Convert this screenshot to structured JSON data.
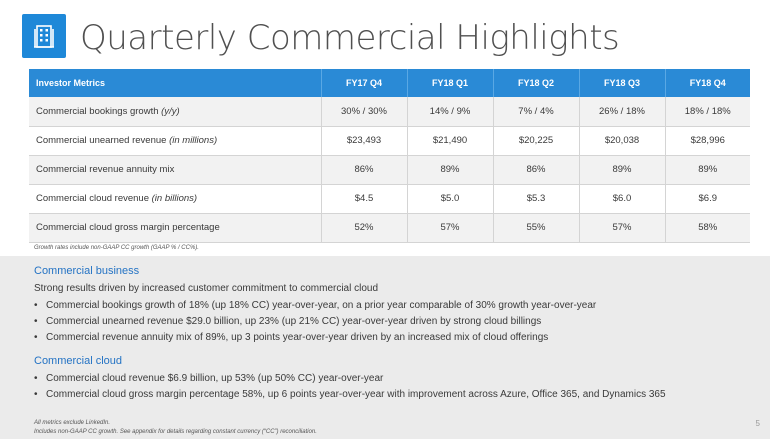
{
  "header": {
    "title": "Quarterly Commercial Highlights",
    "icon": "building-icon",
    "accent_color": "#1e88d8"
  },
  "table": {
    "header_color": "#2a8ad6",
    "columns": [
      "Investor Metrics",
      "FY17 Q4",
      "FY18 Q1",
      "FY18 Q2",
      "FY18 Q3",
      "FY18 Q4"
    ],
    "rows": [
      {
        "label": "Commercial bookings growth",
        "qualifier": "(y/y)",
        "values": [
          "30% / 30%",
          "14% / 9%",
          "7% / 4%",
          "26% / 18%",
          "18% / 18%"
        ]
      },
      {
        "label": "Commercial unearned revenue",
        "qualifier": "(in millions)",
        "values": [
          "$23,493",
          "$21,490",
          "$20,225",
          "$20,038",
          "$28,996"
        ]
      },
      {
        "label": "Commercial revenue annuity mix",
        "qualifier": "",
        "values": [
          "86%",
          "89%",
          "86%",
          "89%",
          "89%"
        ]
      },
      {
        "label": "Commercial cloud revenue",
        "qualifier": "(in billions)",
        "values": [
          "$4.5",
          "$5.0",
          "$5.3",
          "$6.0",
          "$6.9"
        ]
      },
      {
        "label": "Commercial cloud gross margin percentage",
        "qualifier": "",
        "values": [
          "52%",
          "57%",
          "55%",
          "57%",
          "58%"
        ]
      }
    ],
    "footnote": "Growth rates include non-GAAP CC growth (GAAP % / CC%)."
  },
  "commercial_business": {
    "heading": "Commercial business",
    "intro": "Strong results driven by increased customer commitment to commercial cloud",
    "bullets": [
      "Commercial bookings growth of 18% (up 18% CC) year-over-year, on a prior year comparable of 30% growth year-over-year",
      "Commercial unearned revenue $29.0 billion, up 23% (up 21% CC) year-over-year driven by strong cloud billings",
      "Commercial revenue annuity mix of 89%, up 3 points year-over-year driven by an increased mix of cloud offerings"
    ]
  },
  "commercial_cloud": {
    "heading": "Commercial cloud",
    "bullets": [
      "Commercial cloud revenue $6.9 billion, up 53% (up 50% CC) year-over-year",
      "Commercial cloud gross margin percentage 58%, up 6 points year-over-year with improvement across Azure, Office 365, and Dynamics 365"
    ]
  },
  "footer": {
    "note1": "All metrics exclude LinkedIn.",
    "note2": "Includes non-GAAP CC growth. See appendix for details regarding constant currency (“CC”) reconciliation.",
    "page_number": "5"
  },
  "bullet_char": "•"
}
